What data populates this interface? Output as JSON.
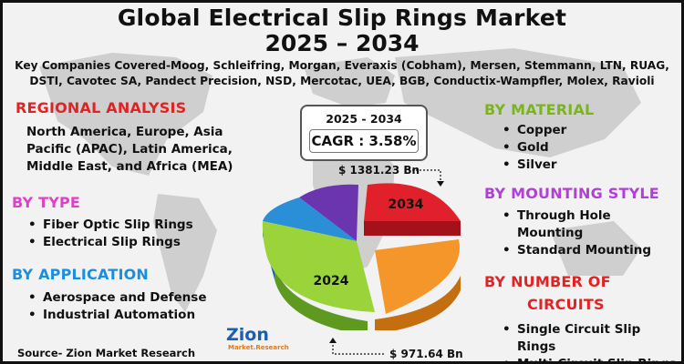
{
  "title_line1": "Global Electrical Slip Rings Market",
  "title_line2": "2025 – 2034",
  "companies": "Key Companies Covered-Moog, Schleifring, Morgan, Everaxis (Cobham), Mersen, Stemmann, LTN, RUAG, DSTI, Cavotec SA, Pandect Precision, NSD, Mercotac, UEA, BGB, Conductix-Wampfler, Molex, Ravioli",
  "regional": {
    "title": "REGIONAL ANALYSIS",
    "text": "North America, Europe, Asia Pacific (APAC), Latin America, Middle East, and Africa (MEA)"
  },
  "by_type": {
    "title": "BY TYPE",
    "items": [
      "Fiber Optic Slip Rings",
      "Electrical Slip Rings"
    ]
  },
  "by_application": {
    "title": "BY APPLICATION",
    "items": [
      "Aerospace and Defense",
      "Industrial Automation"
    ]
  },
  "by_material": {
    "title": "BY MATERIAL",
    "items": [
      "Copper",
      "Gold",
      "Silver"
    ]
  },
  "by_mounting": {
    "title": "BY MOUNTING STYLE",
    "items": [
      "Through Hole Mounting",
      "Standard Mounting"
    ]
  },
  "by_circuits": {
    "title_line1": "BY NUMBER OF",
    "title_line2": "CIRCUITS",
    "items": [
      "Single Circuit Slip Rings",
      "Multi-Circuit Slip Rings"
    ]
  },
  "cagr": {
    "period": "2025 - 2034",
    "label": "CAGR : 3.58%"
  },
  "chart": {
    "label_2034": "2034",
    "label_2024": "2024",
    "value_2034": "$ 1381.23 Bn",
    "value_2024": "$ 971.64 Bn"
  },
  "source": "Source- Zion Market Research",
  "logo": {
    "main": "Zion",
    "sub": "Market.Research"
  },
  "colors": {
    "red_slice": "#e0202a",
    "orange_slice": "#f5962a",
    "green_slice": "#9ad43a",
    "blue_slice": "#2b8fd8",
    "purple_slice": "#7a3fc0"
  }
}
